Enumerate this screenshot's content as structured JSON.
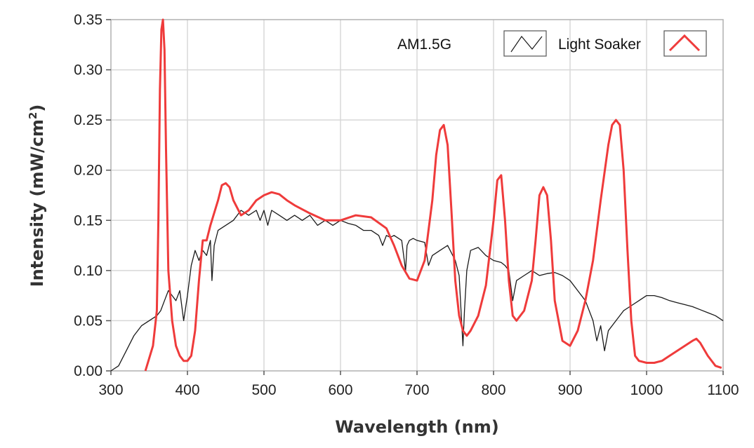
{
  "chart_data": {
    "type": "line",
    "title": "",
    "xlabel": "Wavelength (nm)",
    "ylabel_main": "Intensity (mW/cm",
    "ylabel_sup": "2",
    "ylabel_close": ")",
    "xlim": [
      300,
      1100
    ],
    "ylim": [
      0,
      0.35
    ],
    "xticks": [
      "300",
      "400",
      "500",
      "600",
      "700",
      "800",
      "900",
      "1000",
      "1100"
    ],
    "yticks": [
      "0.00",
      "0.05",
      "0.10",
      "0.15",
      "0.20",
      "0.25",
      "0.30",
      "0.35"
    ],
    "grid": true,
    "legend_position": "top-right",
    "series": [
      {
        "name": "AM1.5G",
        "color": "#1a1a1a",
        "x": [
          300,
          310,
          320,
          330,
          340,
          350,
          360,
          365,
          370,
          375,
          380,
          385,
          390,
          395,
          400,
          405,
          410,
          415,
          420,
          425,
          430,
          432,
          435,
          440,
          450,
          460,
          470,
          480,
          490,
          495,
          500,
          505,
          510,
          520,
          530,
          540,
          550,
          560,
          570,
          580,
          590,
          600,
          610,
          620,
          630,
          640,
          650,
          655,
          660,
          665,
          670,
          680,
          685,
          687,
          690,
          695,
          700,
          710,
          715,
          720,
          730,
          740,
          750,
          755,
          760,
          762,
          765,
          770,
          780,
          790,
          800,
          810,
          815,
          820,
          825,
          830,
          840,
          850,
          860,
          870,
          880,
          890,
          900,
          910,
          920,
          930,
          935,
          940,
          945,
          950,
          960,
          970,
          980,
          990,
          1000,
          1010,
          1020,
          1030,
          1040,
          1050,
          1060,
          1070,
          1080,
          1090,
          1100
        ],
        "y": [
          0.0,
          0.005,
          0.02,
          0.035,
          0.045,
          0.05,
          0.055,
          0.06,
          0.07,
          0.08,
          0.075,
          0.07,
          0.08,
          0.05,
          0.075,
          0.105,
          0.12,
          0.11,
          0.12,
          0.115,
          0.13,
          0.09,
          0.125,
          0.14,
          0.145,
          0.15,
          0.16,
          0.155,
          0.16,
          0.15,
          0.16,
          0.145,
          0.16,
          0.155,
          0.15,
          0.155,
          0.15,
          0.155,
          0.145,
          0.15,
          0.145,
          0.15,
          0.147,
          0.145,
          0.14,
          0.14,
          0.135,
          0.125,
          0.135,
          0.133,
          0.135,
          0.13,
          0.1,
          0.125,
          0.13,
          0.132,
          0.13,
          0.128,
          0.105,
          0.115,
          0.12,
          0.125,
          0.11,
          0.095,
          0.025,
          0.06,
          0.1,
          0.12,
          0.123,
          0.115,
          0.11,
          0.108,
          0.105,
          0.1,
          0.07,
          0.09,
          0.095,
          0.1,
          0.095,
          0.097,
          0.098,
          0.095,
          0.09,
          0.08,
          0.07,
          0.05,
          0.03,
          0.045,
          0.02,
          0.04,
          0.05,
          0.06,
          0.065,
          0.07,
          0.075,
          0.075,
          0.073,
          0.07,
          0.068,
          0.066,
          0.064,
          0.061,
          0.058,
          0.055,
          0.05
        ]
      },
      {
        "name": "Light Soaker",
        "color": "#ef3b3b",
        "x": [
          345,
          355,
          360,
          362,
          364,
          366,
          368,
          370,
          372,
          375,
          380,
          385,
          390,
          395,
          400,
          405,
          410,
          415,
          420,
          425,
          430,
          440,
          445,
          450,
          455,
          460,
          470,
          480,
          490,
          500,
          510,
          520,
          530,
          540,
          560,
          580,
          600,
          620,
          640,
          660,
          670,
          680,
          690,
          700,
          710,
          720,
          725,
          730,
          735,
          740,
          745,
          750,
          755,
          760,
          765,
          770,
          780,
          790,
          800,
          805,
          810,
          815,
          820,
          825,
          830,
          840,
          850,
          855,
          860,
          865,
          870,
          875,
          880,
          890,
          900,
          910,
          920,
          930,
          940,
          950,
          955,
          960,
          965,
          970,
          975,
          980,
          985,
          990,
          1000,
          1010,
          1020,
          1030,
          1040,
          1050,
          1060,
          1065,
          1070,
          1080,
          1090,
          1098
        ],
        "y": [
          0.0,
          0.025,
          0.06,
          0.15,
          0.28,
          0.34,
          0.35,
          0.32,
          0.22,
          0.1,
          0.05,
          0.025,
          0.015,
          0.01,
          0.01,
          0.015,
          0.04,
          0.09,
          0.13,
          0.13,
          0.145,
          0.17,
          0.185,
          0.187,
          0.183,
          0.17,
          0.155,
          0.16,
          0.17,
          0.175,
          0.178,
          0.176,
          0.17,
          0.165,
          0.157,
          0.15,
          0.15,
          0.155,
          0.153,
          0.142,
          0.125,
          0.105,
          0.092,
          0.09,
          0.11,
          0.17,
          0.215,
          0.24,
          0.245,
          0.225,
          0.16,
          0.09,
          0.055,
          0.04,
          0.035,
          0.04,
          0.055,
          0.085,
          0.15,
          0.19,
          0.195,
          0.15,
          0.09,
          0.055,
          0.05,
          0.06,
          0.09,
          0.13,
          0.175,
          0.183,
          0.175,
          0.13,
          0.07,
          0.03,
          0.025,
          0.04,
          0.07,
          0.11,
          0.17,
          0.225,
          0.245,
          0.25,
          0.245,
          0.2,
          0.12,
          0.05,
          0.015,
          0.01,
          0.008,
          0.008,
          0.01,
          0.015,
          0.02,
          0.025,
          0.03,
          0.032,
          0.028,
          0.015,
          0.005,
          0.003
        ]
      }
    ]
  }
}
